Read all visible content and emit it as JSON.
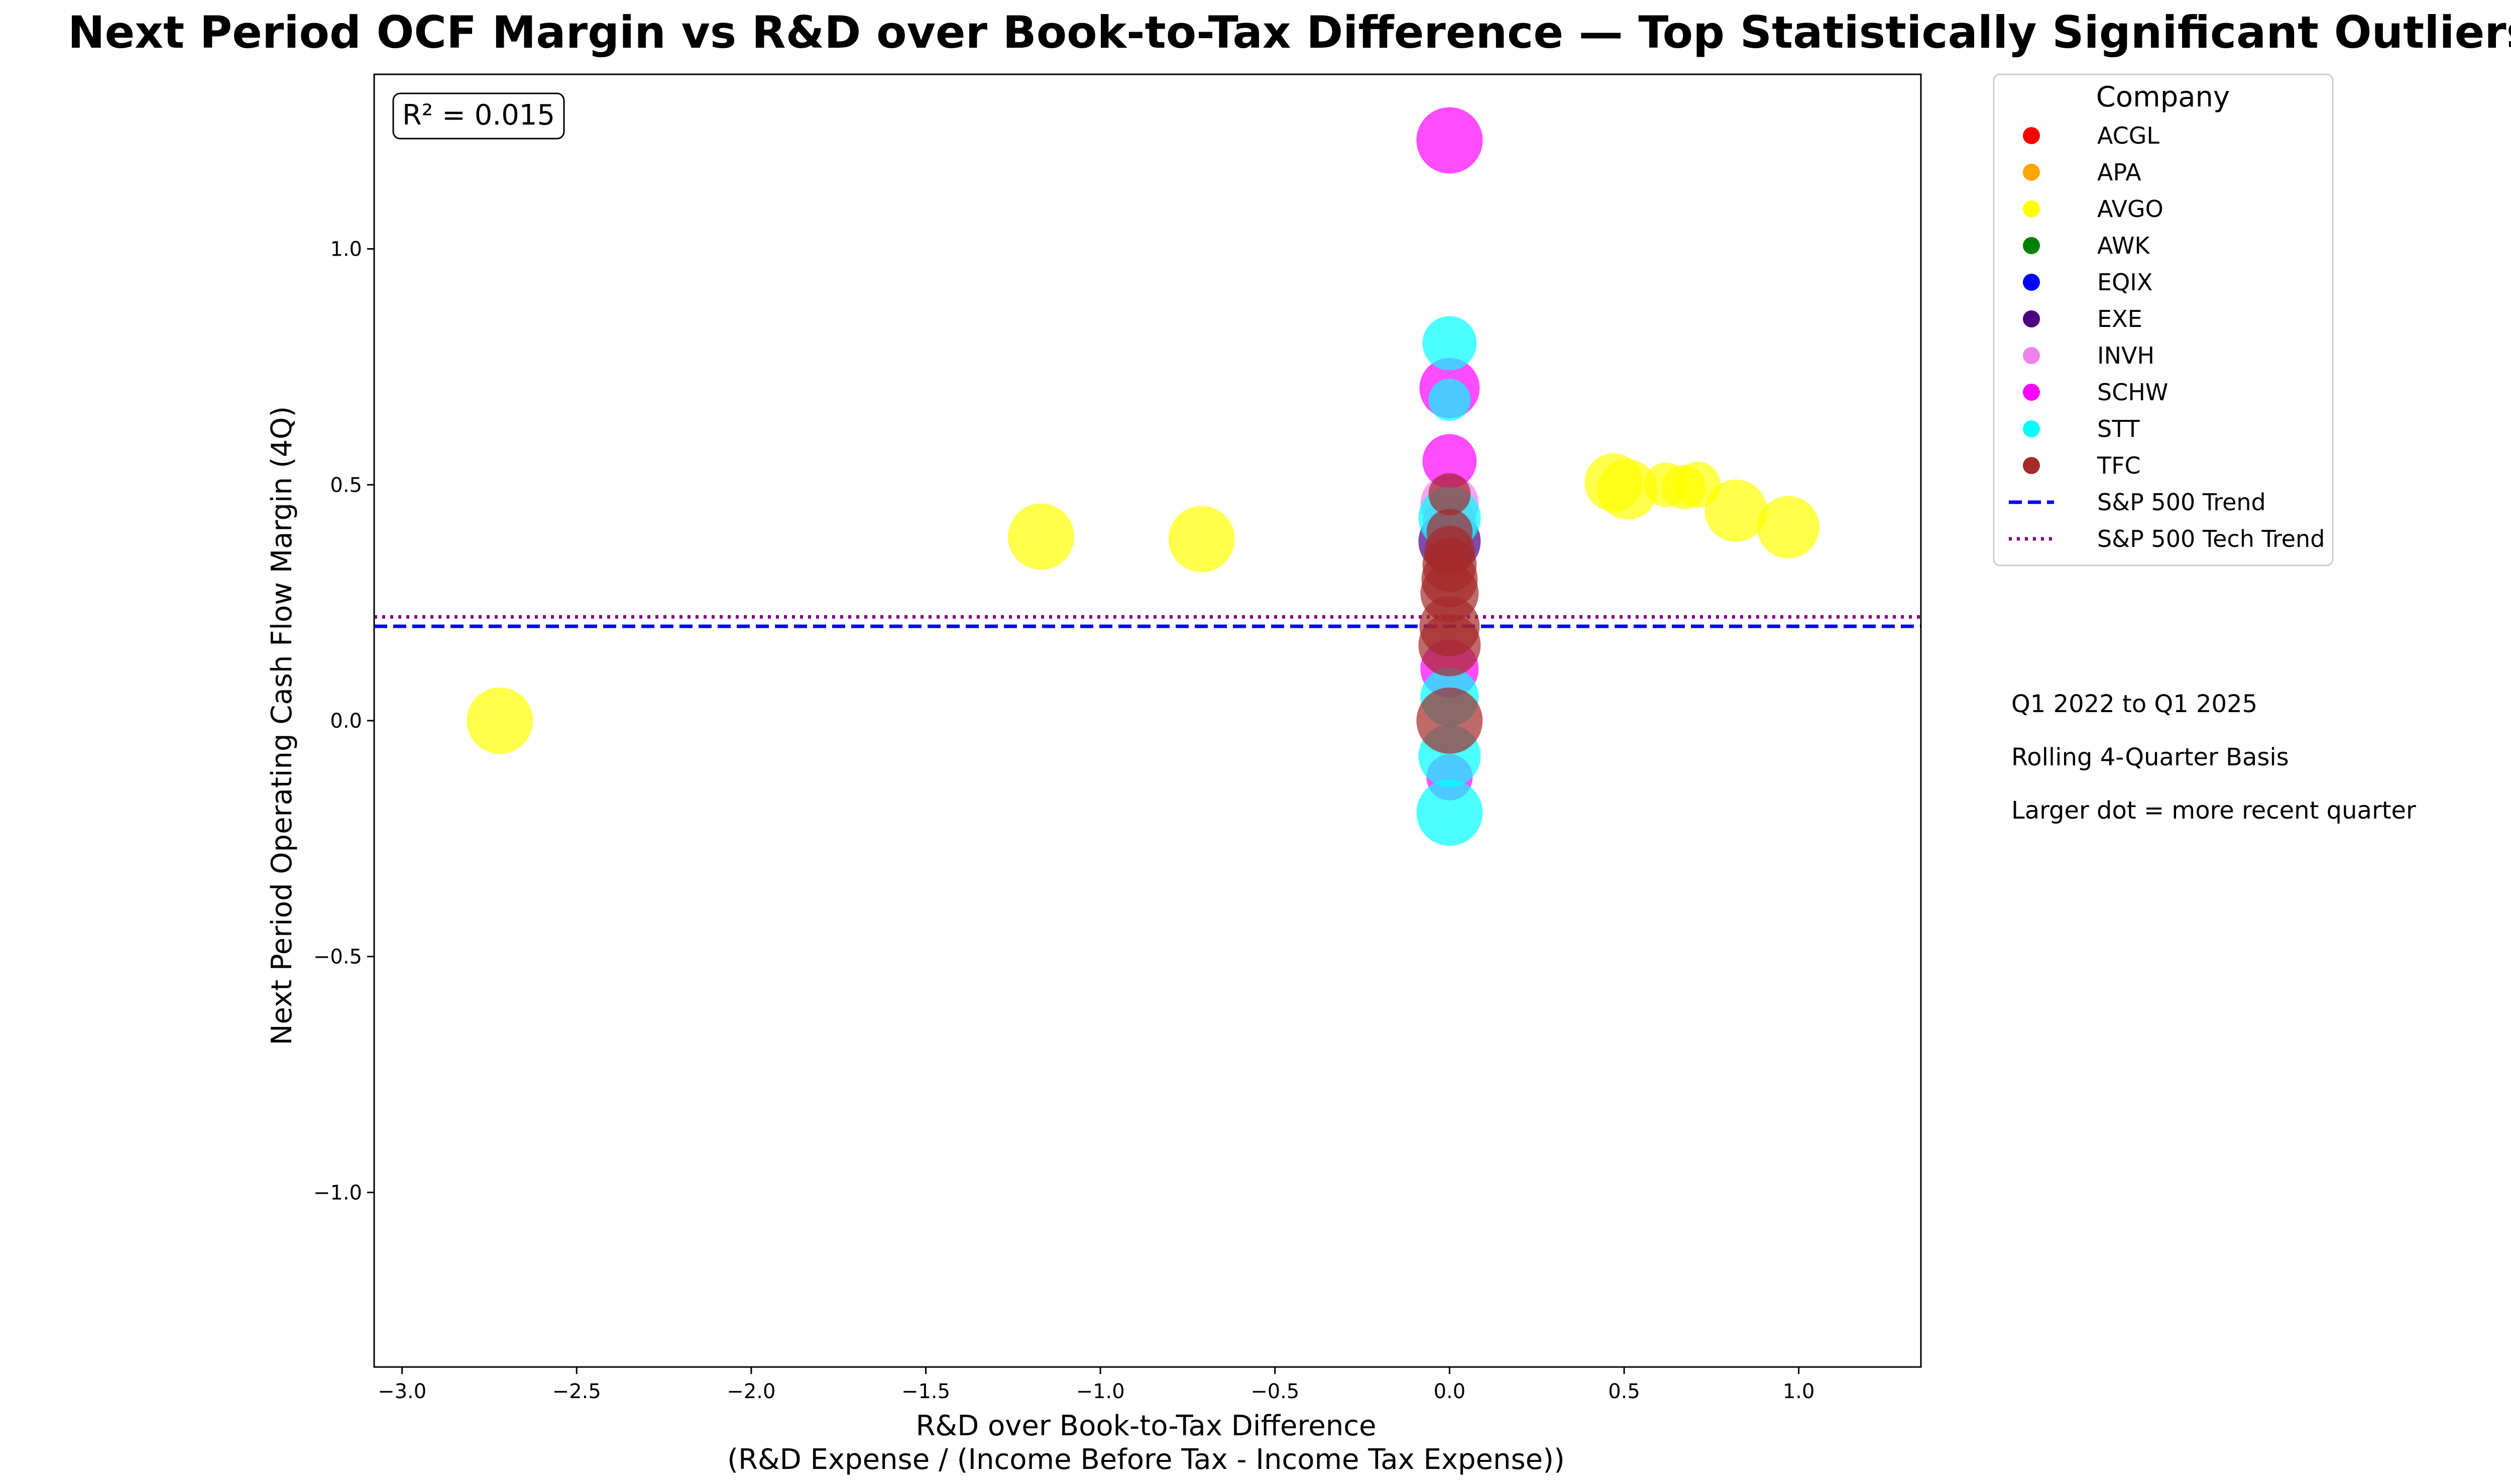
{
  "chart_data": {
    "type": "scatter",
    "title": "Next Period OCF Margin vs R&D over Book-to-Tax Difference — Top Statistically Significant Outliers",
    "xlabel": "R&D over Book-to-Tax Difference",
    "xlabel2": "(R&D Expense / (Income Before Tax - Income Tax Expense))",
    "ylabel": "Next Period Operating Cash Flow Margin (4Q)",
    "xlim": [
      -3.08,
      1.35
    ],
    "ylim": [
      -1.37,
      1.37
    ],
    "x_ticks": [
      -3.0,
      -2.5,
      -2.0,
      -1.5,
      -1.0,
      -0.5,
      0.0,
      0.5,
      1.0
    ],
    "x_tick_labels": [
      "−3.0",
      "−2.5",
      "−2.0",
      "−1.5",
      "−1.0",
      "−0.5",
      "0.0",
      "0.5",
      "1.0"
    ],
    "y_ticks": [
      -1.0,
      -0.5,
      0.0,
      0.5,
      1.0
    ],
    "y_tick_labels": [
      "−1.0",
      "−0.5",
      "0.0",
      "0.5",
      "1.0"
    ],
    "r_squared_label": "R² = 0.015",
    "grid": false,
    "legend_position": "outside-right",
    "legend_title": "Company",
    "series": [
      {
        "name": "ACGL",
        "color": "#ff0000",
        "points": []
      },
      {
        "name": "APA",
        "color": "#ffa500",
        "points": []
      },
      {
        "name": "AVGO",
        "color": "#ffff00",
        "points": [
          {
            "x": -2.72,
            "y": 0.0,
            "s": 1.0
          },
          {
            "x": -1.17,
            "y": 0.39,
            "s": 1.0
          },
          {
            "x": -0.71,
            "y": 0.385,
            "s": 1.0
          },
          {
            "x": 0.47,
            "y": 0.505,
            "s": 0.8
          },
          {
            "x": 0.51,
            "y": 0.49,
            "s": 0.85
          },
          {
            "x": 0.62,
            "y": 0.5,
            "s": 0.45
          },
          {
            "x": 0.67,
            "y": 0.495,
            "s": 0.45
          },
          {
            "x": 0.71,
            "y": 0.5,
            "s": 0.5
          },
          {
            "x": 0.82,
            "y": 0.445,
            "s": 0.9
          },
          {
            "x": 0.97,
            "y": 0.41,
            "s": 0.9
          }
        ]
      },
      {
        "name": "AWK",
        "color": "#008000",
        "points": []
      },
      {
        "name": "EQIX",
        "color": "#0000ff",
        "points": []
      },
      {
        "name": "EXE",
        "color": "#4b0082",
        "points": [
          {
            "x": 0.0,
            "y": 0.38,
            "s": 0.9
          }
        ]
      },
      {
        "name": "INVH",
        "color": "#ee82ee",
        "points": [
          {
            "x": 0.0,
            "y": 0.46,
            "s": 0.8
          },
          {
            "x": 0.0,
            "y": 0.42,
            "s": 0.7
          }
        ]
      },
      {
        "name": "SCHW",
        "color": "#ff00ff",
        "points": [
          {
            "x": 0.0,
            "y": 1.23,
            "s": 1.0
          },
          {
            "x": 0.0,
            "y": 0.705,
            "s": 0.85
          },
          {
            "x": 0.0,
            "y": 0.55,
            "s": 0.7
          },
          {
            "x": 0.0,
            "y": 0.11,
            "s": 0.8
          },
          {
            "x": 0.0,
            "y": -0.12,
            "s": 0.5
          }
        ]
      },
      {
        "name": "STT",
        "color": "#00ffff",
        "points": [
          {
            "x": 0.0,
            "y": 0.8,
            "s": 0.7
          },
          {
            "x": 0.0,
            "y": 0.68,
            "s": 0.4
          },
          {
            "x": 0.0,
            "y": 0.43,
            "s": 0.9
          },
          {
            "x": 0.0,
            "y": 0.05,
            "s": 0.8
          },
          {
            "x": 0.0,
            "y": -0.075,
            "s": 0.9
          },
          {
            "x": 0.0,
            "y": -0.195,
            "s": 1.0
          }
        ]
      },
      {
        "name": "TFC",
        "color": "#a52a2a",
        "points": [
          {
            "x": 0.0,
            "y": 0.48,
            "s": 0.4
          },
          {
            "x": 0.0,
            "y": 0.4,
            "s": 0.5
          },
          {
            "x": 0.0,
            "y": 0.36,
            "s": 0.6
          },
          {
            "x": 0.0,
            "y": 0.33,
            "s": 0.7
          },
          {
            "x": 0.0,
            "y": 0.3,
            "s": 0.75
          },
          {
            "x": 0.0,
            "y": 0.27,
            "s": 0.8
          },
          {
            "x": 0.0,
            "y": 0.2,
            "s": 0.85
          },
          {
            "x": 0.0,
            "y": 0.16,
            "s": 0.9
          },
          {
            "x": 0.0,
            "y": 0.0,
            "s": 1.0
          }
        ]
      }
    ],
    "trend_lines": [
      {
        "name": "S&P 500 Trend",
        "y": 0.2,
        "color": "#0000ff",
        "style": "dashed"
      },
      {
        "name": "S&P 500 Tech Trend",
        "y": 0.22,
        "color": "#800080",
        "style": "dotted"
      }
    ]
  },
  "notes": [
    "Q1 2022 to Q1 2025",
    "Rolling 4-Quarter Basis",
    "Larger dot = more recent quarter"
  ]
}
